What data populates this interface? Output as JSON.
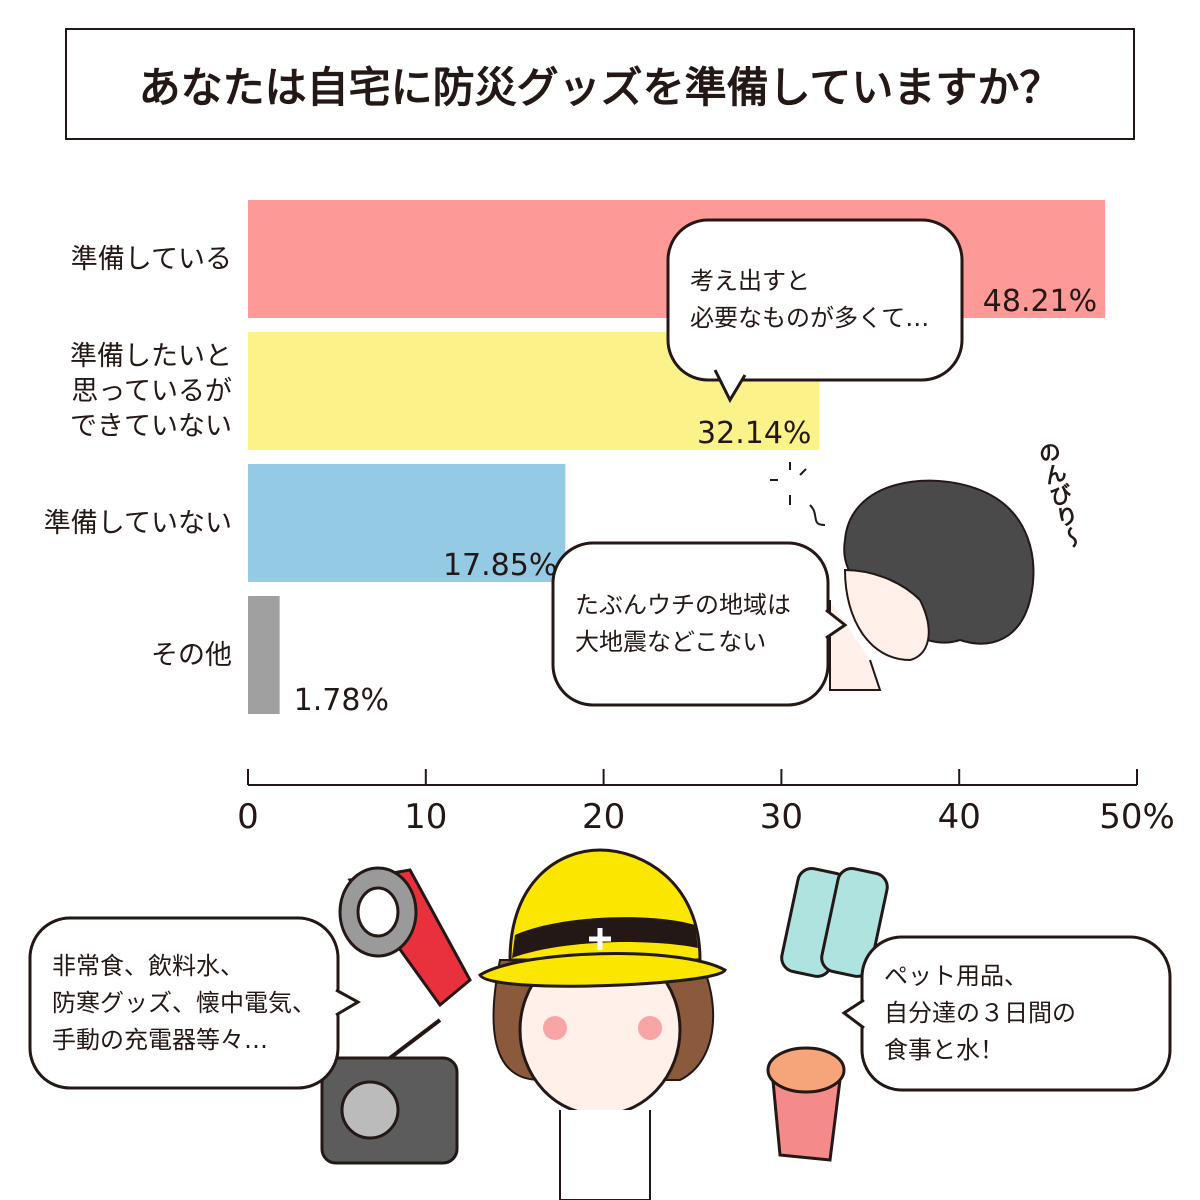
{
  "chart_data": {
    "type": "barh",
    "title": "あなたは自宅に防災グッズを準備していますか？",
    "categories": [
      "準備している",
      "準備したいと\n思っているが\nできていない",
      "準備していない",
      "その他"
    ],
    "values": [
      48.21,
      32.14,
      17.85,
      1.78
    ],
    "value_labels": [
      "48.21%",
      "32.14%",
      "17.85%",
      "1.78%"
    ],
    "colors": [
      "#fd9a98",
      "#fbf38a",
      "#94cae3",
      "#a0a0a0"
    ],
    "xlim": [
      0,
      50
    ],
    "xticks": [
      0,
      10,
      20,
      30,
      40,
      {
        "value": 50,
        "label": "50%"
      }
    ],
    "annotations": [
      "考え出すと\n必要なものが多くて…",
      "たぶんウチの地域は\n大地震などこない",
      "非常食、飲料水、\n防寒グッズ、懐中電気、\n手動の充電器等々…",
      "ペット用品、\n自分達の３日間の\n食事と水！",
      "のんびり〜"
    ]
  }
}
